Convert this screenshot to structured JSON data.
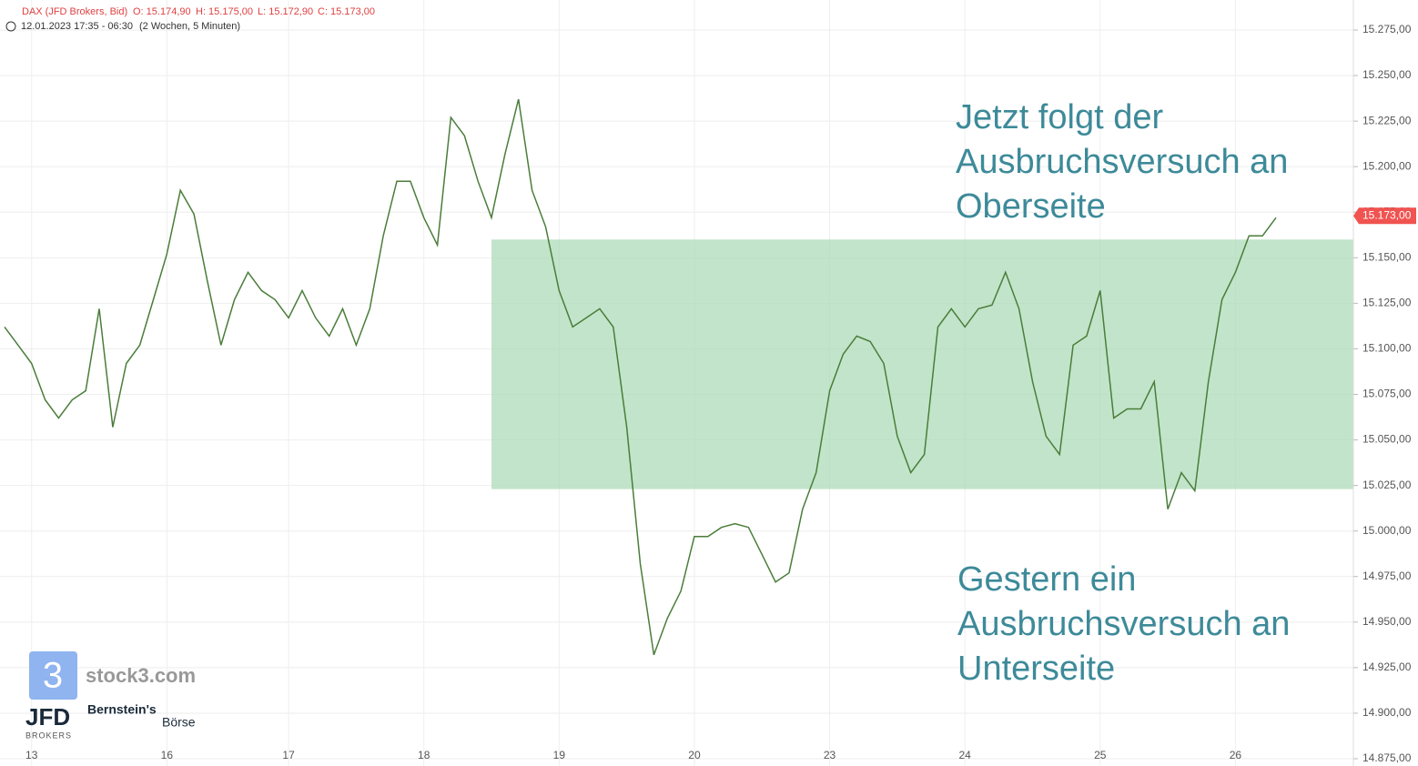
{
  "chart_data": {
    "type": "line",
    "header": {
      "symbol": "DAX (JFD Brokers, Bid)",
      "open": "O: 15.174,90",
      "high": "H: 15.175,00",
      "low": "L: 15.172,90",
      "close": "C: 15.173,00",
      "range": "12.01.2023 17:35 - 06:30",
      "period": "(2 Wochen, 5 Minuten)"
    },
    "categories": [
      null,
      null,
      "13",
      null,
      null,
      null,
      null,
      null,
      null,
      null,
      null,
      null,
      "16",
      null,
      null,
      null,
      null,
      null,
      null,
      null,
      null,
      "17",
      null,
      null,
      null,
      null,
      null,
      null,
      null,
      null,
      null,
      "18",
      null,
      null,
      null,
      null,
      null,
      null,
      null,
      null,
      null,
      "19",
      null,
      null,
      null,
      null,
      null,
      null,
      null,
      null,
      null,
      "20",
      null,
      null,
      null,
      null,
      null,
      null,
      null,
      null,
      null,
      "23",
      null,
      null,
      null,
      null,
      null,
      null,
      null,
      null,
      null,
      "24",
      null,
      null,
      null,
      null,
      null,
      null,
      null,
      null,
      null,
      "25",
      null,
      null,
      null,
      null,
      null,
      null,
      null,
      null,
      null,
      "26",
      null,
      null,
      null
    ],
    "series": [
      {
        "name": "DAX",
        "color": "#4a7d3a",
        "values": [
          15112,
          15102,
          15092,
          15072,
          15062,
          15072,
          15077,
          15122,
          15057,
          15092,
          15102,
          15127,
          15152,
          15187,
          15174,
          15137,
          15102,
          15127,
          15142,
          15132,
          15127,
          15117,
          15132,
          15117,
          15107,
          15122,
          15102,
          15122,
          15162,
          15192,
          15192,
          15172,
          15157,
          15227,
          15217,
          15192,
          15172,
          15207,
          15237,
          15187,
          15167,
          15132,
          15112,
          15117,
          15122,
          15112,
          15057,
          14982,
          14932,
          14952,
          14967,
          14997,
          14997,
          15002,
          15004,
          15002,
          14987,
          14972,
          14977,
          15012,
          15032,
          15077,
          15097,
          15107,
          15104,
          15092,
          15052,
          15032,
          15042,
          15112,
          15122,
          15112,
          15122,
          15124,
          15142,
          15122,
          15082,
          15052,
          15042,
          15102,
          15107,
          15132,
          15062,
          15067,
          15067,
          15082,
          15012,
          15032,
          15022,
          15082,
          15127,
          15142,
          15162,
          15162,
          15172
        ]
      }
    ],
    "ylim": [
      14875,
      15275
    ],
    "yticks": [
      {
        "value": 14875,
        "label": "14.875,00"
      },
      {
        "value": 14900,
        "label": "14.900,00"
      },
      {
        "value": 14925,
        "label": "14.925,00"
      },
      {
        "value": 14950,
        "label": "14.950,00"
      },
      {
        "value": 14975,
        "label": "14.975,00"
      },
      {
        "value": 15000,
        "label": "15.000,00"
      },
      {
        "value": 15025,
        "label": "15.025,00"
      },
      {
        "value": 15050,
        "label": "15.050,00"
      },
      {
        "value": 15075,
        "label": "15.075,00"
      },
      {
        "value": 15100,
        "label": "15.100,00"
      },
      {
        "value": 15125,
        "label": "15.125,00"
      },
      {
        "value": 15150,
        "label": "15.150,00"
      },
      {
        "value": 15175,
        "label": "15.175,00"
      },
      {
        "value": 15200,
        "label": "15.200,00"
      },
      {
        "value": 15225,
        "label": "15.225,00"
      },
      {
        "value": 15250,
        "label": "15.250,00"
      },
      {
        "value": 15275,
        "label": "15.275,00"
      }
    ],
    "grid": true,
    "last_price": {
      "value": 15173,
      "label": "15.173,00",
      "color": "#f05350"
    },
    "zone": {
      "y": [
        15023,
        15160
      ],
      "color": "#a8d8b4"
    },
    "annotations": [
      [
        "Jetzt folgt der",
        "Ausbruchsversuch an",
        "Oberseite"
      ],
      [
        "Gestern ein",
        "Ausbruchsversuch an",
        "Unterseite"
      ]
    ],
    "logos": {
      "stock3": "stock3.com",
      "jfd": "JFD",
      "jfd_sub": "BROKERS",
      "bernstein": "Bernstein's",
      "boerse": "Börse"
    }
  }
}
